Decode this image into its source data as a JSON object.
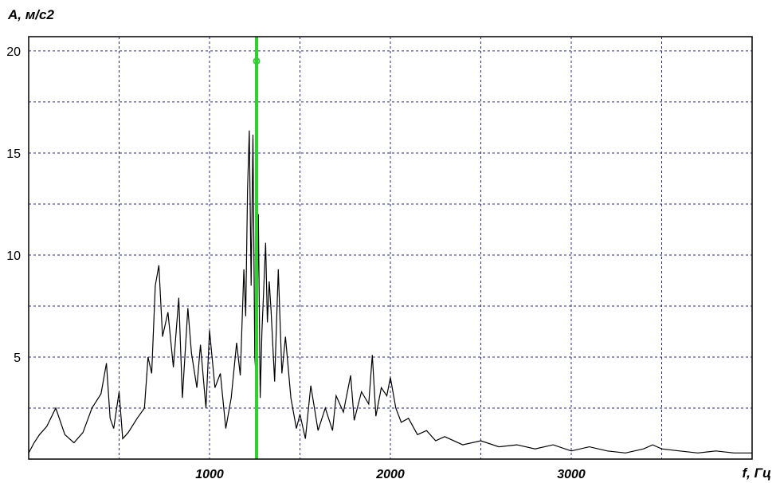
{
  "chart_data": {
    "type": "line",
    "ylabel": "A, м/с2",
    "xlabel": "f, Гц",
    "xlim": [
      0,
      4000
    ],
    "ylim": [
      0,
      20.7
    ],
    "grid": true,
    "x_ticks": [
      {
        "value": 1000,
        "label": "1000"
      },
      {
        "value": 2000,
        "label": "2000"
      },
      {
        "value": 3000,
        "label": "3000"
      }
    ],
    "y_ticks": [
      {
        "value": 5,
        "label": "5"
      },
      {
        "value": 10,
        "label": "10"
      },
      {
        "value": 15,
        "label": "15"
      },
      {
        "value": 20,
        "label": "20"
      }
    ],
    "x_grid": [
      500,
      1000,
      1500,
      2000,
      2500,
      3000,
      3500
    ],
    "y_grid": [
      2.5,
      5,
      7.5,
      10,
      12.5,
      15,
      17.5,
      20
    ],
    "series": [
      {
        "color": "#000000",
        "x": [
          0,
          30,
          60,
          100,
          150,
          200,
          250,
          300,
          350,
          400,
          430,
          450,
          470,
          500,
          520,
          550,
          600,
          640,
          660,
          680,
          700,
          720,
          740,
          770,
          800,
          830,
          850,
          880,
          900,
          930,
          950,
          980,
          1000,
          1030,
          1060,
          1090,
          1120,
          1150,
          1170,
          1190,
          1200,
          1210,
          1220,
          1230,
          1240,
          1250,
          1260,
          1270,
          1280,
          1290,
          1300,
          1310,
          1320,
          1330,
          1340,
          1360,
          1380,
          1400,
          1420,
          1450,
          1480,
          1500,
          1530,
          1560,
          1600,
          1640,
          1680,
          1700,
          1740,
          1780,
          1800,
          1840,
          1880,
          1900,
          1920,
          1950,
          1980,
          2000,
          2030,
          2060,
          2100,
          2150,
          2200,
          2250,
          2300,
          2400,
          2500,
          2600,
          2700,
          2800,
          2900,
          3000,
          3100,
          3200,
          3300,
          3400,
          3450,
          3500,
          3600,
          3700,
          3800,
          3900,
          4000
        ],
        "values": [
          0.3,
          0.8,
          1.2,
          1.6,
          2.5,
          1.2,
          0.8,
          1.3,
          2.5,
          3.2,
          4.7,
          2.0,
          1.5,
          3.3,
          1.0,
          1.3,
          2.0,
          2.5,
          5.0,
          4.2,
          8.5,
          9.5,
          6.0,
          7.2,
          4.5,
          7.9,
          3.0,
          7.4,
          5.2,
          3.5,
          5.6,
          2.5,
          6.3,
          3.5,
          4.2,
          1.5,
          3.0,
          5.7,
          4.1,
          9.3,
          7.0,
          13.2,
          16.1,
          8.5,
          15.9,
          5.0,
          3.7,
          12.0,
          3.0,
          6.3,
          8.4,
          10.6,
          6.7,
          8.7,
          7.3,
          3.8,
          9.3,
          4.2,
          6.0,
          3.0,
          1.5,
          2.2,
          1.0,
          3.6,
          1.4,
          2.5,
          1.4,
          3.1,
          2.3,
          4.1,
          1.9,
          3.3,
          2.7,
          5.1,
          2.1,
          3.5,
          3.1,
          4.0,
          2.5,
          1.8,
          2.0,
          1.2,
          1.4,
          0.9,
          1.1,
          0.7,
          0.9,
          0.6,
          0.7,
          0.5,
          0.7,
          0.4,
          0.6,
          0.4,
          0.3,
          0.5,
          0.7,
          0.5,
          0.4,
          0.3,
          0.4,
          0.3,
          0.3
        ]
      }
    ],
    "marker": {
      "x": 1260,
      "color": "#33cc33",
      "point_y": 19.5
    }
  }
}
